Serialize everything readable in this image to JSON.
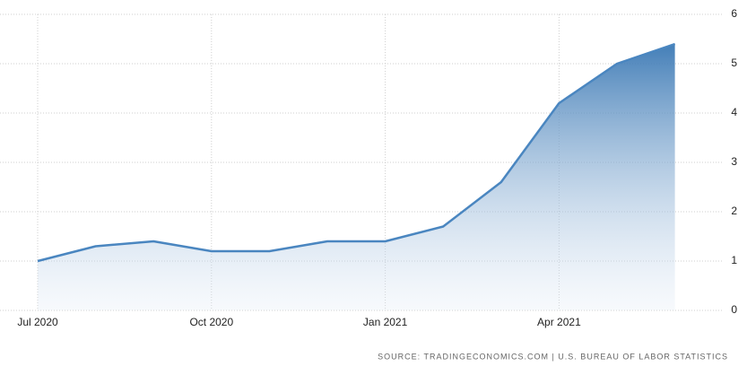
{
  "chart_data": {
    "type": "area",
    "categories": [
      "Jul 2020",
      null,
      null,
      "Oct 2020",
      null,
      null,
      "Jan 2021",
      null,
      null,
      "Apr 2021",
      null,
      null
    ],
    "values": [
      1.0,
      1.3,
      1.4,
      1.2,
      1.2,
      1.4,
      1.4,
      1.7,
      2.6,
      4.2,
      5.0,
      5.4
    ],
    "color": "#4a86c0",
    "ylim": [
      0,
      6
    ],
    "yticks": [
      0,
      1,
      2,
      3,
      4,
      5,
      6
    ],
    "grid": true,
    "source": "SOURCE: TRADINGECONOMICS.COM | U.S. BUREAU OF LABOR STATISTICS"
  }
}
